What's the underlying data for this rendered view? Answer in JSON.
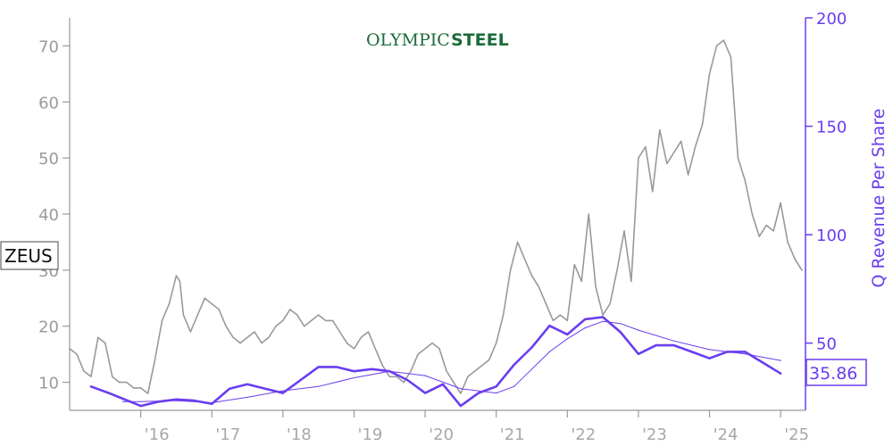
{
  "logo": {
    "part1": "OLYMPIC",
    "part2": "STEEL"
  },
  "ticker": "ZEUS",
  "last_value_label": "35.86",
  "colors": {
    "price": "#999999",
    "revenue": "#6a3df0",
    "logo": "#1b6b3a"
  },
  "chart_data": {
    "type": "line",
    "title": "",
    "xlabel": "",
    "ylabel_left": "",
    "ylabel_right": "Q Revenue Per Share",
    "x_ticks": [
      "'16",
      "'17",
      "'18",
      "'19",
      "'20",
      "'21",
      "'22",
      "'23",
      "'24",
      "'25"
    ],
    "x_range": [
      2015.0,
      2025.35
    ],
    "y_left_range": [
      5,
      75
    ],
    "y_left_ticks": [
      10,
      20,
      30,
      40,
      50,
      60,
      70
    ],
    "y_right_range": [
      19,
      200
    ],
    "y_right_ticks": [
      50,
      100,
      150,
      200
    ],
    "grid": false,
    "series": [
      {
        "axis": "left",
        "style": "thin-gray",
        "x": [
          2015.0,
          2015.1,
          2015.2,
          2015.3,
          2015.4,
          2015.5,
          2015.6,
          2015.7,
          2015.8,
          2015.9,
          2016.0,
          2016.1,
          2016.2,
          2016.3,
          2016.4,
          2016.5,
          2016.55,
          2016.6,
          2016.7,
          2016.8,
          2016.9,
          2017.0,
          2017.1,
          2017.2,
          2017.3,
          2017.4,
          2017.5,
          2017.6,
          2017.7,
          2017.8,
          2017.9,
          2018.0,
          2018.1,
          2018.2,
          2018.3,
          2018.4,
          2018.5,
          2018.6,
          2018.7,
          2018.8,
          2018.9,
          2019.0,
          2019.1,
          2019.2,
          2019.3,
          2019.4,
          2019.5,
          2019.6,
          2019.7,
          2019.8,
          2019.9,
          2020.0,
          2020.1,
          2020.2,
          2020.3,
          2020.4,
          2020.5,
          2020.6,
          2020.7,
          2020.8,
          2020.9,
          2021.0,
          2021.1,
          2021.2,
          2021.3,
          2021.4,
          2021.5,
          2021.6,
          2021.7,
          2021.8,
          2021.9,
          2022.0,
          2022.1,
          2022.2,
          2022.3,
          2022.4,
          2022.5,
          2022.6,
          2022.7,
          2022.8,
          2022.9,
          2023.0,
          2023.1,
          2023.2,
          2023.3,
          2023.4,
          2023.5,
          2023.6,
          2023.7,
          2023.8,
          2023.9,
          2024.0,
          2024.1,
          2024.2,
          2024.3,
          2024.4,
          2024.5,
          2024.6,
          2024.7,
          2024.8,
          2024.9,
          2025.0,
          2025.1,
          2025.2,
          2025.3
        ],
        "values": [
          16,
          15,
          12,
          11,
          18,
          17,
          11,
          10,
          10,
          9,
          9,
          8,
          14,
          21,
          24,
          29,
          28,
          22,
          19,
          22,
          25,
          24,
          23,
          20,
          18,
          17,
          18,
          19,
          17,
          18,
          20,
          21,
          23,
          22,
          20,
          21,
          22,
          21,
          21,
          19,
          17,
          16,
          18,
          19,
          16,
          13,
          11,
          11,
          10,
          12,
          15,
          16,
          17,
          16,
          12,
          10,
          8,
          11,
          12,
          13,
          14,
          17,
          22,
          30,
          35,
          32,
          29,
          27,
          24,
          21,
          22,
          21,
          31,
          28,
          40,
          27,
          22,
          24,
          30,
          37,
          28,
          50,
          52,
          44,
          55,
          49,
          51,
          53,
          47,
          52,
          56,
          65,
          70,
          71,
          68,
          50,
          46,
          40,
          36,
          38,
          37,
          42,
          35,
          32,
          30
        ]
      },
      {
        "axis": "right",
        "style": "thick-purple",
        "name": "Q Revenue Per Share",
        "x": [
          2015.3,
          2015.55,
          2016.0,
          2016.25,
          2016.5,
          2016.75,
          2017.0,
          2017.25,
          2017.5,
          2017.75,
          2018.0,
          2018.25,
          2018.5,
          2018.75,
          2019.0,
          2019.25,
          2019.5,
          2019.75,
          2020.0,
          2020.25,
          2020.5,
          2020.75,
          2021.0,
          2021.25,
          2021.5,
          2021.75,
          2022.0,
          2022.25,
          2022.5,
          2022.75,
          2023.0,
          2023.25,
          2023.5,
          2023.75,
          2024.0,
          2024.25,
          2024.5,
          2024.75,
          2025.0
        ],
        "values": [
          30,
          27,
          21,
          23,
          24,
          23.5,
          22,
          29,
          31,
          29,
          27,
          33,
          39,
          39,
          37,
          38,
          37,
          33,
          27,
          31,
          21,
          27,
          30,
          40,
          48,
          58,
          54,
          61,
          62,
          55,
          45,
          49,
          49,
          46,
          43,
          46,
          46,
          41,
          36
        ]
      },
      {
        "axis": "right",
        "style": "thin-purple",
        "x": [
          2015.75,
          2016.0,
          2016.5,
          2017.0,
          2017.5,
          2018.0,
          2018.5,
          2019.0,
          2019.5,
          2020.0,
          2020.5,
          2021.0,
          2021.25,
          2021.5,
          2021.75,
          2022.0,
          2022.25,
          2022.5,
          2022.75,
          2023.0,
          2023.5,
          2024.0,
          2024.5,
          2025.0
        ],
        "values": [
          23,
          23,
          23.5,
          22.5,
          25,
          28,
          30,
          34,
          37,
          35,
          29,
          27,
          30,
          38,
          46,
          52,
          57,
          60,
          59,
          56,
          51,
          47,
          45,
          42
        ]
      }
    ]
  }
}
